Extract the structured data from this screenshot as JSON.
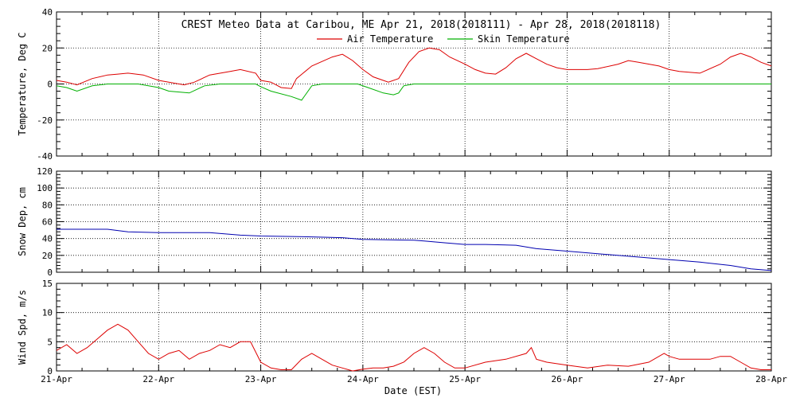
{
  "title": "CREST Meteo Data at Caribou, ME   Apr 21, 2018(2018111) - Apr 28, 2018(2018118)",
  "xlabel": "Date (EST)",
  "x_ticks": [
    "21-Apr",
    "22-Apr",
    "23-Apr",
    "24-Apr",
    "25-Apr",
    "26-Apr",
    "27-Apr",
    "28-Apr"
  ],
  "colors": {
    "air": "#dd0000",
    "skin": "#00b000",
    "snow": "#0000b0",
    "wind": "#dd0000",
    "grid": "#000000"
  },
  "chart_data": [
    {
      "type": "line",
      "ylabel": "Temperature, Deg C",
      "ylim": [
        -40,
        40
      ],
      "yticks": [
        -40,
        -20,
        0,
        20,
        40
      ],
      "grid": "dotted",
      "legend_position": "top-center",
      "x": [
        "21-Apr",
        "22-Apr",
        "23-Apr",
        "24-Apr",
        "25-Apr",
        "26-Apr",
        "27-Apr",
        "28-Apr"
      ],
      "series": [
        {
          "name": "Air Temperature",
          "points": [
            [
              0,
              2
            ],
            [
              0.1,
              1
            ],
            [
              0.2,
              -0.5
            ],
            [
              0.35,
              3
            ],
            [
              0.5,
              5
            ],
            [
              0.6,
              5.5
            ],
            [
              0.7,
              6
            ],
            [
              0.85,
              5
            ],
            [
              1.0,
              2
            ],
            [
              1.1,
              1
            ],
            [
              1.25,
              -0.5
            ],
            [
              1.35,
              1
            ],
            [
              1.5,
              5
            ],
            [
              1.7,
              7
            ],
            [
              1.8,
              8
            ],
            [
              1.95,
              6
            ],
            [
              2.0,
              2
            ],
            [
              2.1,
              1
            ],
            [
              2.2,
              -2
            ],
            [
              2.3,
              -2.5
            ],
            [
              2.35,
              3
            ],
            [
              2.5,
              10
            ],
            [
              2.7,
              15
            ],
            [
              2.8,
              16.5
            ],
            [
              2.9,
              13
            ],
            [
              3.0,
              8
            ],
            [
              3.1,
              4
            ],
            [
              3.2,
              2
            ],
            [
              3.25,
              1
            ],
            [
              3.35,
              3
            ],
            [
              3.45,
              12
            ],
            [
              3.55,
              18
            ],
            [
              3.65,
              20
            ],
            [
              3.75,
              19
            ],
            [
              3.85,
              15
            ],
            [
              4.0,
              11
            ],
            [
              4.1,
              8
            ],
            [
              4.2,
              6
            ],
            [
              4.3,
              5.5
            ],
            [
              4.4,
              9
            ],
            [
              4.5,
              14
            ],
            [
              4.6,
              17
            ],
            [
              4.7,
              14
            ],
            [
              4.8,
              11
            ],
            [
              4.9,
              9
            ],
            [
              5.0,
              8
            ],
            [
              5.2,
              8
            ],
            [
              5.3,
              8.5
            ],
            [
              5.5,
              11
            ],
            [
              5.6,
              13
            ],
            [
              5.7,
              12
            ],
            [
              5.9,
              10
            ],
            [
              6.0,
              8
            ],
            [
              6.1,
              7
            ],
            [
              6.3,
              6
            ],
            [
              6.5,
              11
            ],
            [
              6.6,
              15
            ],
            [
              6.7,
              17
            ],
            [
              6.8,
              15
            ],
            [
              6.9,
              12
            ],
            [
              7.0,
              10
            ]
          ]
        },
        {
          "name": "Skin Temperature",
          "points": [
            [
              0,
              -1
            ],
            [
              0.1,
              -2
            ],
            [
              0.2,
              -4
            ],
            [
              0.35,
              -1
            ],
            [
              0.5,
              0
            ],
            [
              0.8,
              0
            ],
            [
              1.0,
              -2
            ],
            [
              1.1,
              -4
            ],
            [
              1.3,
              -5
            ],
            [
              1.45,
              -1
            ],
            [
              1.6,
              0
            ],
            [
              1.95,
              0
            ],
            [
              2.0,
              -1.5
            ],
            [
              2.1,
              -4
            ],
            [
              2.3,
              -7
            ],
            [
              2.4,
              -9
            ],
            [
              2.5,
              -1
            ],
            [
              2.6,
              0
            ],
            [
              2.95,
              0
            ],
            [
              3.05,
              -2
            ],
            [
              3.2,
              -5
            ],
            [
              3.3,
              -6
            ],
            [
              3.35,
              -5
            ],
            [
              3.4,
              -1
            ],
            [
              3.5,
              0
            ],
            [
              5.0,
              0
            ],
            [
              6.0,
              0
            ],
            [
              7.0,
              0
            ]
          ]
        }
      ]
    },
    {
      "type": "line",
      "ylabel": "Snow Dep, cm",
      "ylim": [
        0,
        120
      ],
      "yticks": [
        0,
        20,
        40,
        60,
        80,
        100,
        120
      ],
      "grid": "dotted",
      "x": [
        "21-Apr",
        "22-Apr",
        "23-Apr",
        "24-Apr",
        "25-Apr",
        "26-Apr",
        "27-Apr",
        "28-Apr"
      ],
      "series": [
        {
          "name": "",
          "points": [
            [
              0,
              51
            ],
            [
              0.5,
              51
            ],
            [
              0.7,
              48
            ],
            [
              1.0,
              47
            ],
            [
              1.5,
              47
            ],
            [
              1.8,
              44
            ],
            [
              2.0,
              43
            ],
            [
              2.5,
              42
            ],
            [
              2.8,
              41
            ],
            [
              3.0,
              39
            ],
            [
              3.5,
              38
            ],
            [
              3.6,
              37
            ],
            [
              3.8,
              35
            ],
            [
              4.0,
              33
            ],
            [
              4.2,
              33
            ],
            [
              4.5,
              32
            ],
            [
              4.7,
              28
            ],
            [
              5.0,
              25
            ],
            [
              5.3,
              22
            ],
            [
              5.6,
              19
            ],
            [
              6.0,
              15
            ],
            [
              6.3,
              12
            ],
            [
              6.6,
              8
            ],
            [
              6.8,
              4
            ],
            [
              7.0,
              2
            ]
          ]
        }
      ]
    },
    {
      "type": "line",
      "ylabel": "Wind Spd, m/s",
      "ylim": [
        0,
        15
      ],
      "yticks": [
        0,
        5,
        10,
        15
      ],
      "grid": "dotted",
      "x": [
        "21-Apr",
        "22-Apr",
        "23-Apr",
        "24-Apr",
        "25-Apr",
        "26-Apr",
        "27-Apr",
        "28-Apr"
      ],
      "series": [
        {
          "name": "",
          "points": [
            [
              0,
              3.5
            ],
            [
              0.1,
              4.5
            ],
            [
              0.2,
              3
            ],
            [
              0.3,
              4
            ],
            [
              0.4,
              5.5
            ],
            [
              0.5,
              7
            ],
            [
              0.6,
              8
            ],
            [
              0.7,
              7
            ],
            [
              0.8,
              5
            ],
            [
              0.9,
              3
            ],
            [
              1.0,
              2
            ],
            [
              1.1,
              3
            ],
            [
              1.2,
              3.5
            ],
            [
              1.3,
              2
            ],
            [
              1.4,
              3
            ],
            [
              1.5,
              3.5
            ],
            [
              1.6,
              4.5
            ],
            [
              1.7,
              4
            ],
            [
              1.8,
              5
            ],
            [
              1.9,
              5
            ],
            [
              2.0,
              1.5
            ],
            [
              2.1,
              0.5
            ],
            [
              2.2,
              0.2
            ],
            [
              2.3,
              0.2
            ],
            [
              2.4,
              2
            ],
            [
              2.5,
              3
            ],
            [
              2.6,
              2
            ],
            [
              2.7,
              1
            ],
            [
              2.8,
              0.5
            ],
            [
              2.9,
              0
            ],
            [
              3.0,
              0.3
            ],
            [
              3.1,
              0.5
            ],
            [
              3.2,
              0.5
            ],
            [
              3.3,
              0.8
            ],
            [
              3.4,
              1.5
            ],
            [
              3.5,
              3
            ],
            [
              3.6,
              4
            ],
            [
              3.7,
              3
            ],
            [
              3.8,
              1.5
            ],
            [
              3.9,
              0.5
            ],
            [
              4.0,
              0.5
            ],
            [
              4.2,
              1.5
            ],
            [
              4.4,
              2
            ],
            [
              4.6,
              3
            ],
            [
              4.65,
              4
            ],
            [
              4.7,
              2
            ],
            [
              4.8,
              1.5
            ],
            [
              5.0,
              1
            ],
            [
              5.2,
              0.5
            ],
            [
              5.4,
              1
            ],
            [
              5.6,
              0.8
            ],
            [
              5.8,
              1.5
            ],
            [
              5.95,
              3
            ],
            [
              6.0,
              2.5
            ],
            [
              6.1,
              2
            ],
            [
              6.2,
              2
            ],
            [
              6.4,
              2
            ],
            [
              6.5,
              2.5
            ],
            [
              6.6,
              2.5
            ],
            [
              6.7,
              1.5
            ],
            [
              6.8,
              0.5
            ],
            [
              6.9,
              0.2
            ],
            [
              7.0,
              0.2
            ]
          ]
        }
      ]
    }
  ]
}
